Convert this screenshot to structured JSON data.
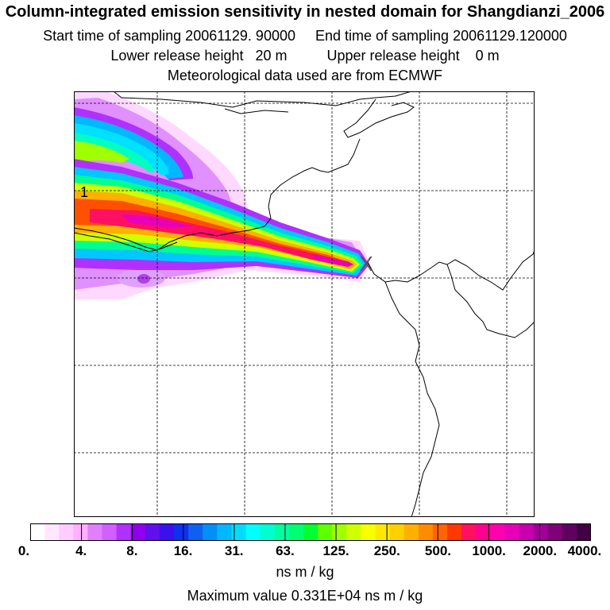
{
  "header": {
    "title": "Column-integrated emission sensitivity in nested domain for Shangdianzi_2006",
    "sampling": "Start time of sampling 20061129. 90000     End time of sampling 20061129.120000",
    "release": "Lower release height   20 m          Upper release height    0 m",
    "meteo": "Meteorological data used are from ECMWF"
  },
  "map": {
    "receptor_symbol": "X",
    "station_label": "1",
    "grid_lines": "dashed"
  },
  "colorbar": {
    "colors": [
      "#ffffff",
      "#ffe8ff",
      "#ffccff",
      "#ffb0ff",
      "#e080ff",
      "#d060ff",
      "#b030ff",
      "#9000ee",
      "#6010ee",
      "#3a10ee",
      "#1030ee",
      "#1060f0",
      "#0090f8",
      "#00b8ff",
      "#00dcff",
      "#00ffff",
      "#00ffd0",
      "#00ffa0",
      "#00ff70",
      "#00ff30",
      "#60ff00",
      "#a0ff00",
      "#d0ff00",
      "#f8ff00",
      "#ffe800",
      "#ffd000",
      "#ffb000",
      "#ff8c00",
      "#ff6400",
      "#ff3800",
      "#ff1060",
      "#ff0090",
      "#ff00b0",
      "#e800b8",
      "#c800b0",
      "#a00098",
      "#800078",
      "#600060",
      "#440044"
    ],
    "tick_labels": [
      "0.",
      "4.",
      "8.",
      "16.",
      "31.",
      "63.",
      "125.",
      "250.",
      "500.",
      "1000.",
      "2000.",
      "4000."
    ],
    "units": "ns m / kg"
  },
  "footer": {
    "max_value": "Maximum value  0.331E+04 ns m / kg"
  }
}
